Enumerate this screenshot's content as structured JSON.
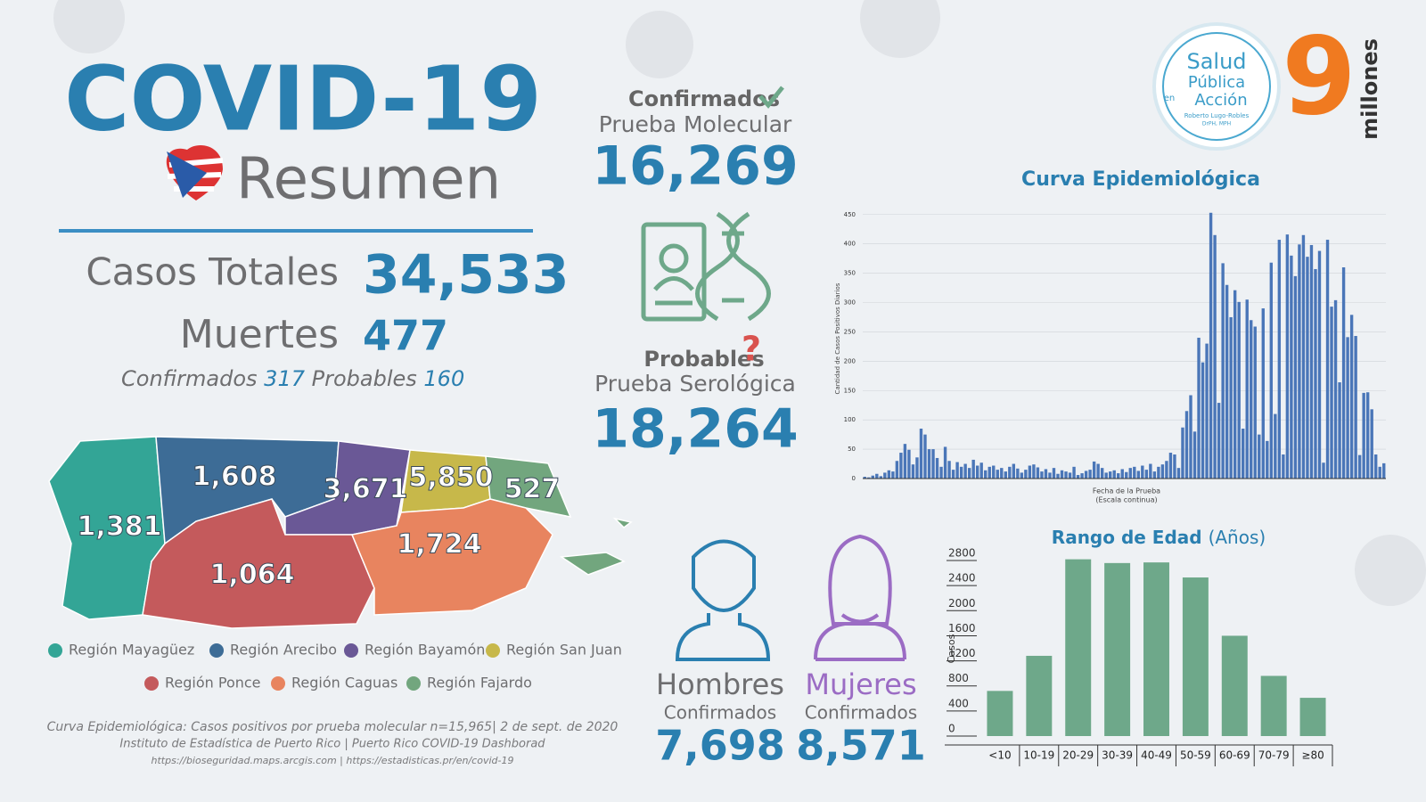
{
  "header": {
    "title": "COVID-19",
    "subtitle": "Resumen"
  },
  "totals": {
    "casos_label": "Casos Totales",
    "casos": "34,533",
    "muertes_label": "Muertes",
    "muertes": "477",
    "confirmados_label": "Confirmados",
    "confirmados": "317",
    "probables_label": "Probables",
    "probables": "160"
  },
  "map": {
    "regions": [
      {
        "name": "Región Mayagüez",
        "value": "1,381",
        "color": "#33a596"
      },
      {
        "name": "Región Arecibo",
        "value": "1,608",
        "color": "#3d6c96"
      },
      {
        "name": "Región Bayamón",
        "value": "3,671",
        "color": "#6a5896"
      },
      {
        "name": "Región San Juan",
        "value": "5,850",
        "color": "#c7b84a"
      },
      {
        "name": "Región Ponce",
        "value": "1,064",
        "color": "#c45a5c"
      },
      {
        "name": "Región Caguas",
        "value": "1,724",
        "color": "#e8845f"
      },
      {
        "name": "Región Fajardo",
        "value": "527",
        "color": "#72a67e"
      }
    ]
  },
  "tests": {
    "molecular": {
      "label": "Confirmados",
      "sublabel": "Prueba Molecular",
      "value": "16,269"
    },
    "serologica": {
      "label": "Probables",
      "sublabel": "Prueba Serológica",
      "value": "18,264"
    }
  },
  "gender": {
    "hombres": {
      "label": "Hombres",
      "sublabel": "Confirmados",
      "value": "7,698"
    },
    "mujeres": {
      "label": "Mujeres",
      "sublabel": "Confirmados",
      "value": "8,571"
    }
  },
  "logo": {
    "line1": "Salud",
    "line2": "Pública",
    "en": "en",
    "line3": "Acción",
    "name": "Roberto Lugo-Robles",
    "cred": "DrPH, MPH"
  },
  "population": {
    "number": "9",
    "unit": "millones"
  },
  "footer": [
    "Curva Epidemiológica: Casos positivos por prueba molecular n=15,965| 2 de sept. de 2020",
    "Instituto de Estadística de Puerto Rico | Puerto Rico COVID-19 Dashborad",
    "https://bioseguridad.maps.arcgis.com | https://estadisticas.pr/en/covid-19"
  ],
  "charts": [
    {
      "type": "bar",
      "title": "Curva Epidemiológica",
      "y_label": "Cantidad de Casos Positivos Diarios",
      "x_label": "Fecha de la Prueba",
      "x_sublabel": "(Escala continua)",
      "color": "#4a76b8",
      "grid": true,
      "ylim": [
        0,
        480
      ],
      "yticks": [
        0,
        50,
        100,
        150,
        200,
        250,
        300,
        350,
        400,
        450
      ],
      "values": [
        3,
        2,
        5,
        8,
        4,
        10,
        14,
        12,
        30,
        44,
        59,
        49,
        24,
        36,
        85,
        75,
        50,
        50,
        35,
        20,
        54,
        30,
        15,
        28,
        20,
        25,
        18,
        32,
        22,
        27,
        14,
        20,
        22,
        15,
        18,
        12,
        20,
        25,
        17,
        10,
        15,
        22,
        24,
        19,
        12,
        16,
        10,
        18,
        8,
        14,
        12,
        10,
        20,
        6,
        9,
        13,
        15,
        29,
        25,
        18,
        10,
        12,
        14,
        9,
        16,
        11,
        18,
        20,
        13,
        22,
        15,
        25,
        12,
        20,
        24,
        30,
        44,
        41,
        18,
        87,
        115,
        142,
        80,
        240,
        198,
        230,
        453,
        415,
        129,
        367,
        330,
        275,
        321,
        301,
        85,
        305,
        270,
        259,
        75,
        290,
        64,
        368,
        110,
        407,
        41,
        416,
        380,
        345,
        399,
        415,
        378,
        398,
        357,
        388,
        27,
        407,
        293,
        304,
        164,
        360,
        241,
        279,
        243,
        40,
        146,
        147,
        118,
        41,
        20,
        26
      ]
    },
    {
      "type": "bar",
      "title": "Rango de Edad",
      "title_suffix": "(Años)",
      "y_label": "Casos",
      "color": "#6ea88a",
      "grid": false,
      "categories": [
        "<10",
        "10-19",
        "20-29",
        "30-39",
        "40-49",
        "50-59",
        "60-69",
        "70-79",
        "≥80"
      ],
      "values": [
        720,
        1280,
        2820,
        2760,
        2770,
        2530,
        1600,
        960,
        610
      ],
      "ylim": [
        0,
        2900
      ],
      "yticks": [
        0,
        400,
        800,
        1200,
        1600,
        2000,
        2400,
        2800
      ]
    }
  ]
}
